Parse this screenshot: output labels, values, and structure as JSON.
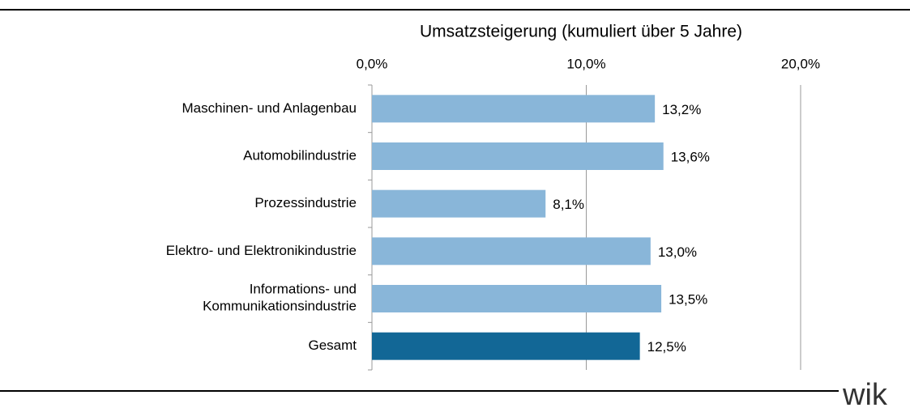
{
  "chart_data": {
    "type": "bar",
    "orientation": "horizontal",
    "title": "Umsatzsteigerung  (kumuliert über 5 Jahre)",
    "categories": [
      "Maschinen- und Anlagenbau",
      "Automobilindustrie",
      "Prozessindustrie",
      "Elektro- und Elektronikindustrie",
      "Informations- und\nKommunikationsindustrie",
      "Gesamt"
    ],
    "values": [
      13.2,
      13.6,
      8.1,
      13.0,
      13.5,
      12.5
    ],
    "value_labels": [
      "13,2%",
      "13,6%",
      "8,1%",
      "13,0%",
      "13,5%",
      "12,5%"
    ],
    "colors": [
      "#89b6d9",
      "#89b6d9",
      "#89b6d9",
      "#89b6d9",
      "#89b6d9",
      "#126796"
    ],
    "xlim": [
      0,
      20
    ],
    "xticks": [
      {
        "value": 0,
        "label": "0,0%"
      },
      {
        "value": 10,
        "label": "10,0%"
      },
      {
        "value": 20,
        "label": "20,0%"
      }
    ],
    "grid": true,
    "logo": "wik"
  }
}
